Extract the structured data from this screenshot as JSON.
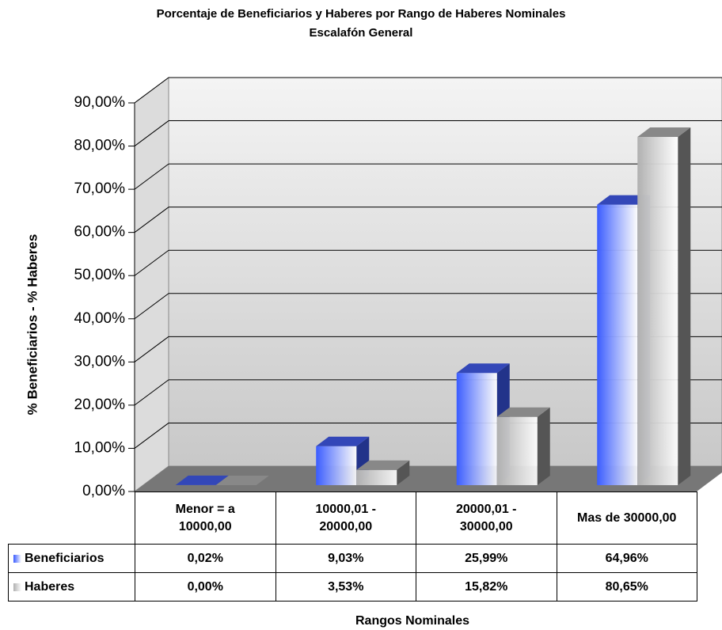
{
  "chart_data": {
    "type": "bar3d",
    "title": "Porcentaje de Beneficiarios y Haberes por Rango de Haberes Nominales",
    "subtitle": "Escalafón General",
    "y_label": "% Beneficiarios - % Haberes",
    "x_label": "Rangos Nominales",
    "categories": [
      "Menor = a\n10000,00",
      "10000,01 -\n20000,00",
      "20000,01 -\n30000,00",
      "Mas de 30000,00"
    ],
    "series": [
      {
        "name": "Beneficiarios",
        "color": "#3a5cff",
        "values": [
          0.02,
          9.03,
          25.99,
          64.96
        ],
        "value_labels": [
          "0,02%",
          "9,03%",
          "25,99%",
          "64,96%"
        ]
      },
      {
        "name": "Haberes",
        "color": "#b0b0b0",
        "values": [
          0,
          3.53,
          15.82,
          80.65
        ],
        "value_labels": [
          "0,00%",
          "3,53%",
          "15,82%",
          "80,65%"
        ]
      }
    ],
    "ylim": [
      0,
      90
    ],
    "yticks": [
      {
        "value": 0,
        "label": "0,00%"
      },
      {
        "value": 10,
        "label": "10,00%"
      },
      {
        "value": 20,
        "label": "20,00%"
      },
      {
        "value": 30,
        "label": "30,00%"
      },
      {
        "value": 40,
        "label": "40,00%"
      },
      {
        "value": 50,
        "label": "50,00%"
      },
      {
        "value": 60,
        "label": "60,00%"
      },
      {
        "value": 70,
        "label": "70,00%"
      },
      {
        "value": 80,
        "label": "80,00%"
      },
      {
        "value": 90,
        "label": "90,00%"
      }
    ],
    "grid": true
  }
}
